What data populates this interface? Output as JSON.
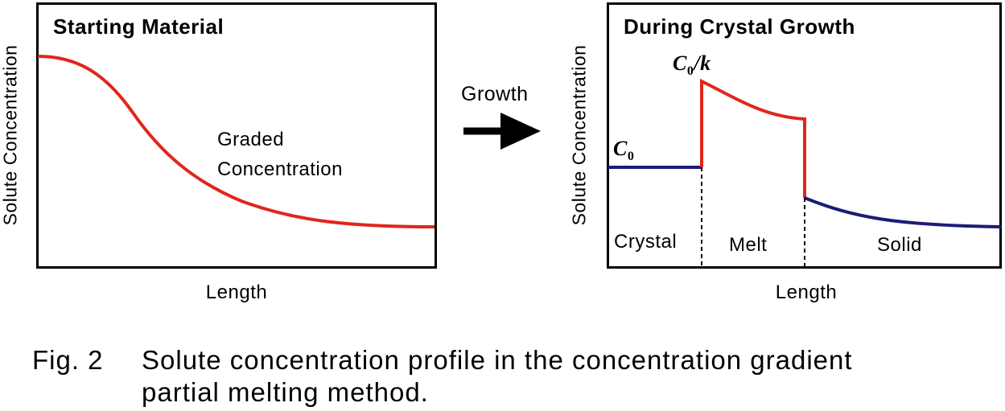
{
  "left_panel": {
    "title": "Starting Material",
    "ylabel": "Solute Concentration",
    "xlabel": "Length",
    "curve_label_line1": "Graded",
    "curve_label_line2": "Concentration"
  },
  "arrow": {
    "label": "Growth"
  },
  "right_panel": {
    "title": "During Crystal Growth",
    "ylabel": "Solute Concentration",
    "xlabel": "Length",
    "c0_label": "C",
    "c0_sub": "0",
    "peak_label_c": "C",
    "peak_label_sub": "0",
    "peak_label_k": "/k",
    "regions": [
      "Crystal",
      "Melt",
      "Solid"
    ]
  },
  "caption": {
    "label": "Fig. 2",
    "line1": "Solute concentration profile in the concentration gradient",
    "line2": "partial melting method."
  },
  "colors": {
    "red": "#e0261d",
    "navy": "#1d1a78",
    "black": "#000000"
  }
}
